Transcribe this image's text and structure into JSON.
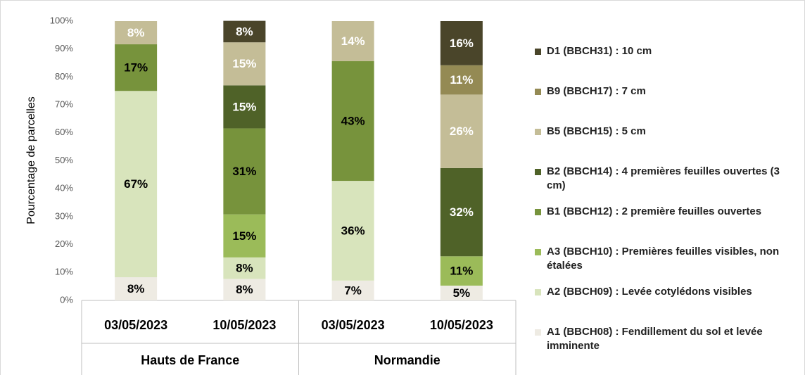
{
  "chart_data": {
    "type": "stacked_bar",
    "y_axis_label": "Pourcentage de parcelles",
    "categories": [
      "03/05/2023",
      "10/05/2023",
      "03/05/2023",
      "10/05/2023"
    ],
    "groups": [
      {
        "name": "Hauts de France",
        "size": 2
      },
      {
        "name": "Normandie",
        "size": 2
      }
    ],
    "ylim": [
      0,
      100
    ],
    "yticks": [
      {
        "value": 0,
        "label": "0%"
      },
      {
        "value": 10,
        "label": "10%"
      },
      {
        "value": 20,
        "label": "20%"
      },
      {
        "value": 30,
        "label": "30%"
      },
      {
        "value": 40,
        "label": "40%"
      },
      {
        "value": 50,
        "label": "50%"
      },
      {
        "value": 60,
        "label": "60%"
      },
      {
        "value": 70,
        "label": "70%"
      },
      {
        "value": 80,
        "label": "80%"
      },
      {
        "value": 90,
        "label": "90%"
      },
      {
        "value": 100,
        "label": "100%"
      }
    ],
    "series": [
      {
        "name": "A1 (BBCH08) : Fendillement du sol et levée imminente",
        "color": "#eeebe3",
        "label_color": "#000000",
        "values": [
          8.3,
          7.7,
          7.1,
          5.3
        ],
        "value_labels": [
          "8%",
          "8%",
          "7%",
          "5%"
        ]
      },
      {
        "name": "A2 (BBCH09) : Levée cotylédons visibles",
        "color": "#d8e4bc",
        "label_color": "#000000",
        "values": [
          66.7,
          7.7,
          35.7,
          null
        ],
        "value_labels": [
          "67%",
          "8%",
          "36%",
          null
        ]
      },
      {
        "name": "A3 (BBCH10) : Premières feuilles visibles, non étalées",
        "color": "#9bbb59",
        "label_color": "#000000",
        "values": [
          null,
          15.4,
          null,
          10.5
        ],
        "value_labels": [
          null,
          "15%",
          null,
          "11%"
        ]
      },
      {
        "name": "B1 (BBCH12) : 2 première feuilles ouvertes",
        "color": "#77933c",
        "label_color": "#000000",
        "values": [
          16.7,
          30.8,
          42.9,
          null
        ],
        "value_labels": [
          "17%",
          "31%",
          "43%",
          null
        ]
      },
      {
        "name": "B2 (BBCH14) : 4 premières feuilles ouvertes (3 cm)",
        "color": "#4f6228",
        "label_color": "#ffffff",
        "values": [
          null,
          15.4,
          null,
          31.6
        ],
        "value_labels": [
          null,
          "15%",
          null,
          "32%"
        ]
      },
      {
        "name": "B5 (BBCH15) : 5 cm",
        "color": "#c4bd97",
        "label_color": "#ffffff",
        "values": [
          8.3,
          15.4,
          14.3,
          26.3
        ],
        "value_labels": [
          "8%",
          "15%",
          "14%",
          "26%"
        ]
      },
      {
        "name": "B9 (BBCH17) : 7 cm",
        "color": "#948a54",
        "label_color": "#ffffff",
        "values": [
          null,
          null,
          null,
          10.5
        ],
        "value_labels": [
          null,
          null,
          null,
          "11%"
        ]
      },
      {
        "name": "D1 (BBCH31) : 10 cm",
        "color": "#4a452a",
        "label_color": "#ffffff",
        "values": [
          null,
          7.7,
          null,
          15.8
        ],
        "value_labels": [
          null,
          "8%",
          null,
          "16%"
        ]
      }
    ],
    "grid": false
  }
}
